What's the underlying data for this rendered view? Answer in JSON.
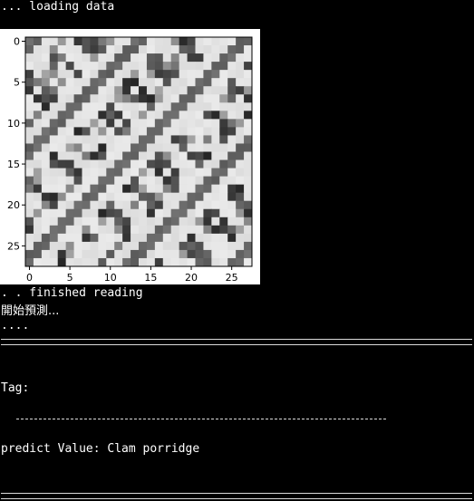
{
  "console": {
    "loading": "... loading data",
    "finished": ". . finished reading",
    "start_predict": "開始預測...",
    "dots": "....",
    "tag_label": "Tag:",
    "predict_value": "predict Value: Clam porridge"
  },
  "figure": {
    "x_ticks": [
      "0",
      "5",
      "10",
      "15",
      "20",
      "25"
    ],
    "y_ticks": [
      "0",
      "5",
      "10",
      "15",
      "20",
      "25"
    ],
    "image_size": [
      28,
      28
    ],
    "colormap": "gray"
  }
}
